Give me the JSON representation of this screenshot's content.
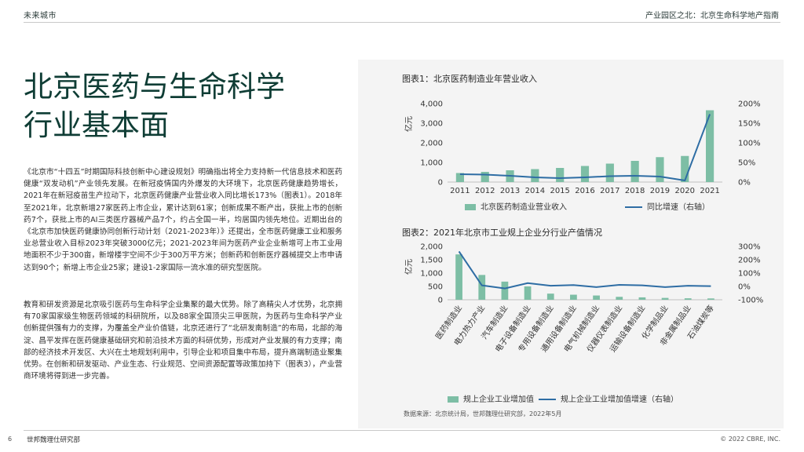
{
  "header": {
    "brand": "未来城市",
    "right": "产业园区之北：北京生命科学地产指南"
  },
  "title": {
    "line1": "北京医药与生命科学",
    "line2": "行业基本面"
  },
  "paragraphs": [
    "《北京市“十四五”时期国际科技创新中心建设规划》明确指出将全力支持新一代信息技术和医药健康“双发动机”产业领先发展。在新冠疫情国内外爆发的大环境下，北京医药健康趋势增长，2021年在新冠疫苗生产拉动下，北京医药健康产业营业收入同比增长173%（图表1）。2018年至2021年，北京新增27家医药上市企业，累计达到61家；创新成果不断产出，获批上市的创新药7个，获批上市的AI三类医疗器械产品7个，约占全国一半，均居国内领先地位。近期出台的《北京市加快医药健康协同创新行动计划（2021-2023年）》还提出，全市医药健康工业和服务业总营业收入目标2023年突破3000亿元；2021-2023年间为医药产业企业新增可上市工业用地面积不少于300亩，新增楼宇空间不少于300万平方米；创新药和创新医疗器械提交上市申请达到90个；新增上市企业25家；建设1-2家国际一流水准的研究型医院。",
    "教育和研发资源是北京吸引医药与生命科学企业集聚的最大优势。除了高精尖人才优势，北京拥有70家国家级生物医药领域的科研院所，以及88家全国顶尖三甲医院，为医药与生命科学产业创新提供强有力的支撑，为覆盖全产业价值链，北京还进行了“北研发南制造”的布局，北部的海淀、昌平发挥在医药健康基础研究和前沿技术方面的科研优势，形成对产业发展的有力支撑；南部的经济技术开发区、大兴在土地规划利用中，引导企业和项目集中布局，提升高端制造业聚集优势。在创新和研发驱动、产业生态、行业规范、空间资源配置等政策加持下（图表3），产业营商环境将得到进一步完善。"
  ],
  "chart_data": [
    {
      "type": "bar",
      "title": "图表1：北京医药制造业年营业收入",
      "ylabel": "亿元",
      "categories": [
        "2011",
        "2012",
        "2013",
        "2014",
        "2015",
        "2016",
        "2017",
        "2018",
        "2019",
        "2020",
        "2021"
      ],
      "ylim": [
        0,
        4000
      ],
      "yticks": [
        "0",
        "1,000",
        "2,000",
        "3,000",
        "4,000"
      ],
      "y2lim": [
        0,
        200
      ],
      "y2ticks": [
        "0%",
        "50%",
        "100%",
        "150%",
        "200%"
      ],
      "series": [
        {
          "name": "北京医药制造业营业收入",
          "kind": "bar",
          "axis": "left",
          "color": "#7dbea5",
          "values": [
            460,
            520,
            600,
            660,
            720,
            820,
            940,
            1080,
            1270,
            1330,
            3660
          ]
        },
        {
          "name": "同比增速（右轴）",
          "kind": "line",
          "axis": "right",
          "color": "#2e6da4",
          "values": [
            20,
            19,
            16,
            12,
            10,
            12,
            15,
            16,
            14,
            4,
            173
          ]
        }
      ]
    },
    {
      "type": "bar",
      "title": "图表2：2021年北京市工业规上企业分行业产值情况",
      "ylabel": "亿元",
      "categories": [
        "医药制造业",
        "电力热力产业",
        "汽车制造业",
        "电子设备制造业",
        "专用设备制造业",
        "通用设备制造业",
        "电气机械制造业",
        "仪器仪表制造业",
        "运输设备制造业",
        "化学制品业",
        "非金属制品业",
        "石油煤炭等"
      ],
      "ylim": [
        0,
        2000
      ],
      "yticks": [
        "0",
        "500",
        "1,000",
        "1,500",
        "2,000"
      ],
      "y2lim": [
        -100,
        300
      ],
      "y2ticks": [
        "-100%",
        "0%",
        "100%",
        "200%",
        "300%"
      ],
      "series": [
        {
          "name": "规上企业工业增加值",
          "kind": "bar",
          "axis": "left",
          "color": "#7dbea5",
          "values": [
            1700,
            930,
            680,
            500,
            230,
            190,
            160,
            110,
            90,
            70,
            55,
            50
          ]
        },
        {
          "name": "规上企业工业增加值增速（右轴）",
          "kind": "line",
          "axis": "right",
          "color": "#2e6da4",
          "values": [
            262,
            8,
            -15,
            25,
            5,
            10,
            -5,
            12,
            8,
            -5,
            5,
            2
          ]
        }
      ]
    }
  ],
  "source": "数据来源：北京统计局，世邦魏理仕研究部，2022年5月",
  "footer": {
    "page": "6",
    "org": "世邦魏理仕研究部",
    "copyright": "© 2022 CBRE, INC."
  }
}
